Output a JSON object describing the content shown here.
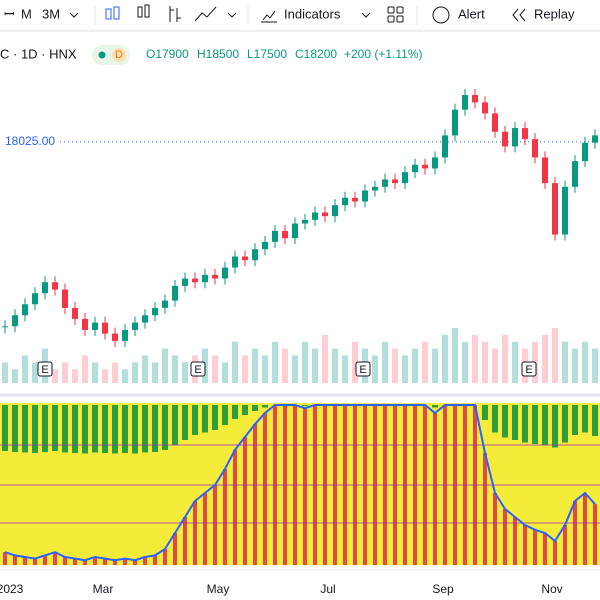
{
  "toolbar": {
    "intervals": [
      "M",
      "3M"
    ],
    "indicators": "Indicators",
    "alert": "Alert",
    "replay": "Replay"
  },
  "legend": {
    "symbol": "C · 1D · HNX",
    "badge": "D",
    "open": "O17900",
    "high": "H18500",
    "low": "L17500",
    "close": "C18200",
    "change": "+200 (+1.11%)"
  },
  "chart_data": {
    "type": "candlestick",
    "ylim": [
      11400,
      20200
    ],
    "price_line": {
      "value": 18025,
      "label": "18025.00"
    },
    "closes": [
      13000,
      13300,
      13600,
      13900,
      14200,
      14000,
      13500,
      13200,
      12900,
      13100,
      12800,
      12600,
      12900,
      13100,
      13300,
      13500,
      13700,
      14100,
      14300,
      14200,
      14400,
      14300,
      14600,
      14900,
      14800,
      15100,
      15300,
      15600,
      15400,
      15800,
      15900,
      16100,
      16000,
      16300,
      16500,
      16400,
      16700,
      16800,
      17000,
      16900,
      17200,
      17400,
      17300,
      17600,
      18200,
      18900,
      19300,
      19100,
      18800,
      18300,
      17900,
      18400,
      18100,
      17600,
      16900,
      15500,
      16800,
      17500,
      18000,
      18200
    ],
    "volume": [
      3,
      2,
      4,
      3,
      5,
      2,
      3,
      2,
      4,
      3,
      2,
      3,
      2,
      3,
      4,
      3,
      5,
      4,
      3,
      4,
      5,
      4,
      3,
      6,
      4,
      5,
      4,
      6,
      5,
      4,
      6,
      5,
      7,
      5,
      4,
      6,
      5,
      4,
      6,
      5,
      4,
      5,
      6,
      5,
      7,
      8,
      6,
      7,
      6,
      5,
      7,
      6,
      5,
      6,
      7,
      8,
      6,
      5,
      6,
      5
    ],
    "oscillator": [
      8,
      6,
      5,
      4,
      6,
      8,
      5,
      4,
      3,
      5,
      4,
      3,
      4,
      3,
      5,
      6,
      10,
      20,
      30,
      40,
      45,
      50,
      60,
      72,
      80,
      88,
      95,
      100,
      100,
      100,
      98,
      100,
      100,
      100,
      100,
      100,
      100,
      100,
      100,
      100,
      100,
      100,
      100,
      95,
      100,
      100,
      100,
      100,
      70,
      45,
      35,
      30,
      25,
      22,
      20,
      15,
      25,
      40,
      45,
      38
    ],
    "earnings": [
      "E",
      "E",
      "E",
      "E"
    ],
    "x_labels": [
      "2023",
      "Mar",
      "May",
      "Jul",
      "Sep",
      "Nov"
    ]
  }
}
